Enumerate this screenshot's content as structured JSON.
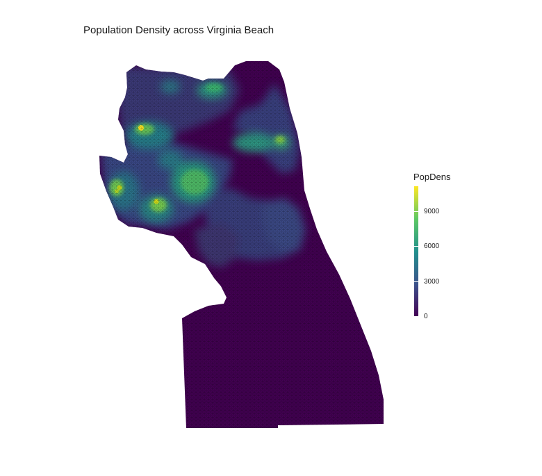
{
  "title": "Population Density across Virginia Beach",
  "legend": {
    "title": "PopDens",
    "min": 0,
    "max": 11200,
    "breaks": [
      {
        "value": 0,
        "label": "0"
      },
      {
        "value": 3000,
        "label": "3000"
      },
      {
        "value": 6000,
        "label": "6000"
      },
      {
        "value": 9000,
        "label": "9000"
      }
    ],
    "colormap": "viridis"
  },
  "chart_data": {
    "type": "heatmap",
    "title": "Population Density across Virginia Beach",
    "variable": "PopDens",
    "scale_range": [
      0,
      11200
    ],
    "colors": [
      "#440154",
      "#3b528b",
      "#21908d",
      "#5dc863",
      "#fde725"
    ],
    "cell_shape": "hexagon",
    "hotspots": [
      {
        "area": "northwest",
        "value": 10500
      },
      {
        "area": "west-central",
        "value": 9000
      },
      {
        "area": "west",
        "value": 9500
      },
      {
        "area": "central",
        "value": 8000
      },
      {
        "area": "north",
        "value": 6500
      },
      {
        "area": "northeast",
        "value": 7000
      },
      {
        "area": "east-central",
        "value": 6000
      }
    ],
    "background_value": 0
  }
}
